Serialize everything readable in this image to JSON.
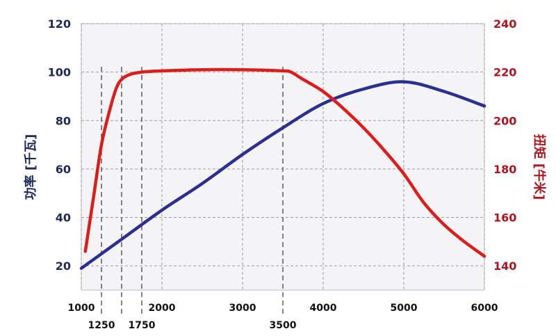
{
  "chart_data": {
    "type": "line",
    "ylabel_left": "功率 [千瓦]",
    "ylabel_right": "扭矩 [牛米]",
    "xlim": [
      1000,
      6000
    ],
    "ylim_left": [
      10,
      120
    ],
    "ylim_right": [
      130,
      240
    ],
    "grid": true,
    "x_ticks_top_row": [
      "1000",
      "2000",
      "3000",
      "4000",
      "5000",
      "6000"
    ],
    "x_ticks_bottom_row": [
      "1250",
      "1750",
      "3500"
    ],
    "y_ticks_left": [
      "20",
      "40",
      "60",
      "80",
      "100",
      "120"
    ],
    "y_ticks_right": [
      "140",
      "160",
      "180",
      "200",
      "220",
      "240"
    ],
    "annotations_x": [
      1250,
      1500,
      1750,
      3500
    ],
    "series": [
      {
        "axis": "left",
        "color": "#2b2f8f",
        "points": [
          [
            1000,
            19
          ],
          [
            1500,
            31
          ],
          [
            2000,
            43
          ],
          [
            2500,
            54
          ],
          [
            3000,
            66
          ],
          [
            3500,
            77
          ],
          [
            4000,
            87
          ],
          [
            4500,
            93
          ],
          [
            5000,
            96
          ],
          [
            5500,
            92
          ],
          [
            6000,
            86
          ]
        ]
      },
      {
        "axis": "right",
        "color": "#dd1c1c",
        "points": [
          [
            1050,
            146
          ],
          [
            1150,
            168
          ],
          [
            1250,
            190
          ],
          [
            1350,
            204
          ],
          [
            1430,
            213
          ],
          [
            1500,
            217
          ],
          [
            1600,
            219
          ],
          [
            1750,
            220
          ],
          [
            2000,
            220.5
          ],
          [
            2500,
            221
          ],
          [
            3000,
            221
          ],
          [
            3500,
            220.5
          ],
          [
            3600,
            220
          ],
          [
            3750,
            217
          ],
          [
            4000,
            212
          ],
          [
            4250,
            205
          ],
          [
            4500,
            197
          ],
          [
            4750,
            188
          ],
          [
            5000,
            178
          ],
          [
            5250,
            166
          ],
          [
            5500,
            157
          ],
          [
            5750,
            150
          ],
          [
            6000,
            144
          ]
        ]
      }
    ]
  }
}
